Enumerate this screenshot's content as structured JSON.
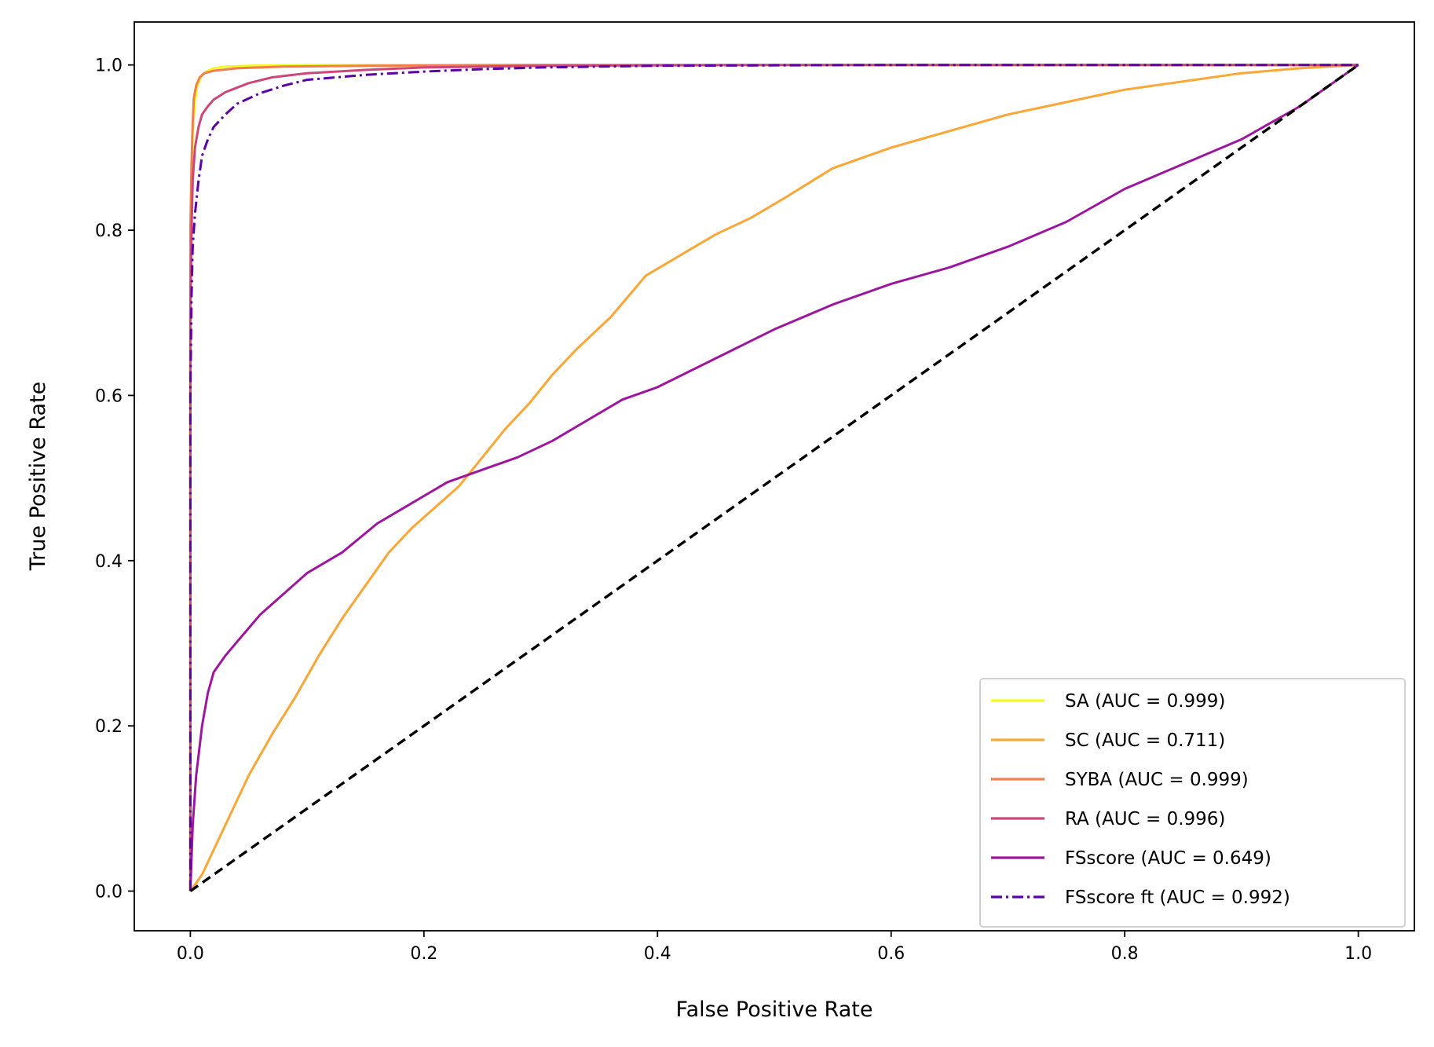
{
  "chart_data": {
    "type": "line",
    "title": "",
    "xlabel": "False Positive Rate",
    "ylabel": "True Positive Rate",
    "xlim": [
      -0.048,
      1.048
    ],
    "ylim": [
      -0.048,
      1.052
    ],
    "xticks": [
      0.0,
      0.2,
      0.4,
      0.6,
      0.8,
      1.0
    ],
    "yticks": [
      0.0,
      0.2,
      0.4,
      0.6,
      0.8,
      1.0
    ],
    "xtick_labels": [
      "0.0",
      "0.2",
      "0.4",
      "0.6",
      "0.8",
      "1.0"
    ],
    "ytick_labels": [
      "0.0",
      "0.2",
      "0.4",
      "0.6",
      "0.8",
      "1.0"
    ],
    "grid": false,
    "legend_position": "lower-right",
    "series": [
      {
        "name": "SA (AUC = 0.999)",
        "color": "#f0f921",
        "linestyle": "solid",
        "x": [
          0,
          0,
          0.001,
          0.002,
          0.004,
          0.006,
          0.01,
          0.015,
          0.02,
          0.03,
          0.05,
          0.1,
          0.2,
          0.4,
          0.7,
          1.0
        ],
        "y": [
          0,
          0.7,
          0.85,
          0.92,
          0.955,
          0.975,
          0.988,
          0.993,
          0.996,
          0.998,
          0.999,
          1.0,
          1.0,
          1.0,
          1.0,
          1.0
        ]
      },
      {
        "name": "SC (AUC = 0.711)",
        "color": "#fca636",
        "linestyle": "solid",
        "x": [
          0,
          0.01,
          0.02,
          0.03,
          0.05,
          0.07,
          0.09,
          0.11,
          0.13,
          0.15,
          0.17,
          0.19,
          0.21,
          0.23,
          0.25,
          0.27,
          0.29,
          0.31,
          0.33,
          0.36,
          0.39,
          0.42,
          0.45,
          0.48,
          0.51,
          0.55,
          0.6,
          0.65,
          0.7,
          0.75,
          0.8,
          0.85,
          0.9,
          0.95,
          1.0
        ],
        "y": [
          0,
          0.02,
          0.05,
          0.08,
          0.14,
          0.19,
          0.235,
          0.285,
          0.33,
          0.37,
          0.41,
          0.44,
          0.465,
          0.49,
          0.525,
          0.56,
          0.59,
          0.625,
          0.655,
          0.695,
          0.745,
          0.77,
          0.795,
          0.815,
          0.84,
          0.875,
          0.9,
          0.92,
          0.94,
          0.955,
          0.97,
          0.98,
          0.99,
          0.996,
          1.0
        ]
      },
      {
        "name": "SYBA (AUC = 0.999)",
        "color": "#f07f4f",
        "linestyle": "solid",
        "x": [
          0,
          0,
          0.001,
          0.002,
          0.003,
          0.005,
          0.008,
          0.012,
          0.02,
          0.04,
          0.08,
          0.15,
          0.3,
          0.5,
          1.0
        ],
        "y": [
          0,
          0.8,
          0.88,
          0.93,
          0.96,
          0.975,
          0.985,
          0.99,
          0.993,
          0.996,
          0.998,
          0.999,
          1.0,
          1.0,
          1.0
        ]
      },
      {
        "name": "RA (AUC = 0.996)",
        "color": "#cc4778",
        "linestyle": "solid",
        "x": [
          0,
          0,
          0.001,
          0.002,
          0.004,
          0.007,
          0.01,
          0.015,
          0.02,
          0.03,
          0.05,
          0.07,
          0.1,
          0.15,
          0.2,
          0.3,
          0.5,
          1.0
        ],
        "y": [
          0,
          0.7,
          0.8,
          0.86,
          0.9,
          0.925,
          0.94,
          0.95,
          0.958,
          0.967,
          0.978,
          0.985,
          0.99,
          0.994,
          0.997,
          0.999,
          1.0,
          1.0
        ]
      },
      {
        "name": "FSscore (AUC = 0.649)",
        "color": "#9c179e",
        "linestyle": "solid",
        "x": [
          0,
          0.002,
          0.005,
          0.01,
          0.015,
          0.02,
          0.03,
          0.045,
          0.06,
          0.08,
          0.1,
          0.13,
          0.16,
          0.19,
          0.22,
          0.25,
          0.28,
          0.31,
          0.34,
          0.37,
          0.4,
          0.45,
          0.5,
          0.55,
          0.6,
          0.65,
          0.7,
          0.75,
          0.8,
          0.85,
          0.9,
          0.95,
          1.0
        ],
        "y": [
          0,
          0.08,
          0.14,
          0.2,
          0.24,
          0.265,
          0.285,
          0.31,
          0.335,
          0.36,
          0.385,
          0.41,
          0.445,
          0.47,
          0.495,
          0.51,
          0.525,
          0.545,
          0.57,
          0.595,
          0.61,
          0.645,
          0.68,
          0.71,
          0.735,
          0.755,
          0.78,
          0.81,
          0.85,
          0.88,
          0.91,
          0.95,
          1.0
        ]
      },
      {
        "name": "FSscore ft (AUC = 0.992)",
        "color": "#5c01a6",
        "linestyle": "dashdot",
        "x": [
          0,
          0,
          0.001,
          0.002,
          0.004,
          0.007,
          0.01,
          0.015,
          0.02,
          0.03,
          0.04,
          0.06,
          0.08,
          0.1,
          0.15,
          0.2,
          0.25,
          0.3,
          0.4,
          0.6,
          1.0
        ],
        "y": [
          0,
          0.6,
          0.72,
          0.78,
          0.82,
          0.86,
          0.89,
          0.91,
          0.925,
          0.94,
          0.953,
          0.966,
          0.975,
          0.982,
          0.988,
          0.992,
          0.995,
          0.997,
          0.999,
          1.0,
          1.0
        ]
      },
      {
        "name": "diagonal",
        "color": "#000000",
        "linestyle": "dashed",
        "in_legend": false,
        "x": [
          0,
          1
        ],
        "y": [
          0,
          1
        ]
      }
    ]
  }
}
